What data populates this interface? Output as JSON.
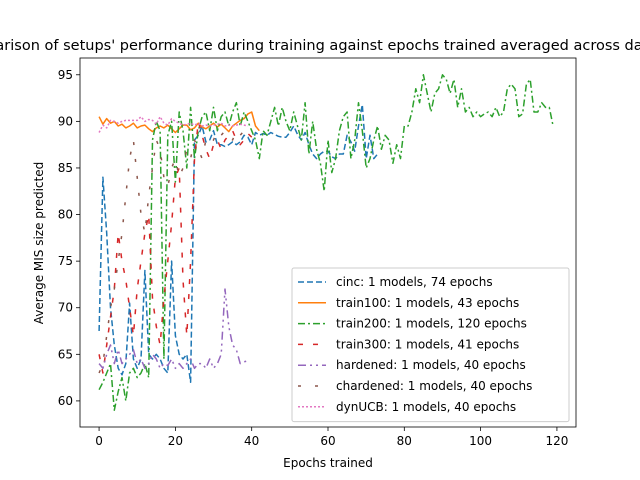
{
  "chart_data": {
    "type": "line",
    "title": "Comparison of setups' performance during training against epochs trained averaged across datasets",
    "xlabel": "Epochs trained",
    "ylabel": "Average MIS size predicted",
    "xlim": [
      -5,
      125
    ],
    "ylim": [
      57.2,
      96.8
    ],
    "xticks": [
      0,
      20,
      40,
      60,
      80,
      100,
      120
    ],
    "yticks": [
      60,
      65,
      70,
      75,
      80,
      85,
      90,
      95
    ],
    "legend_position": "lower-right",
    "series": [
      {
        "name": "cinc: 1 models, 74 epochs",
        "color": "#1f77b4",
        "dash": "6,3",
        "x": [
          0,
          1,
          2,
          3,
          4,
          5,
          6,
          7,
          8,
          9,
          10,
          11,
          12,
          13,
          14,
          15,
          16,
          17,
          18,
          19,
          20,
          21,
          22,
          23,
          24,
          25,
          26,
          27,
          28,
          29,
          30,
          31,
          32,
          33,
          34,
          35,
          36,
          37,
          38,
          39,
          40,
          41,
          42,
          43,
          44,
          45,
          46,
          47,
          48,
          49,
          50,
          51,
          52,
          53,
          54,
          55,
          56,
          57,
          58,
          59,
          60,
          61,
          62,
          63,
          64,
          65,
          66,
          67,
          68,
          69,
          70,
          71,
          72,
          73
        ],
        "values": [
          67.5,
          84,
          78,
          70,
          66,
          63.5,
          62.8,
          64,
          70.5,
          64.5,
          63.5,
          64.5,
          74,
          65,
          64.5,
          65,
          64.5,
          63.5,
          63,
          75,
          67,
          65,
          64.5,
          65,
          62,
          88,
          88.5,
          89.5,
          87.8,
          88,
          89,
          87.5,
          87.5,
          87.3,
          87.5,
          87.8,
          87.5,
          87.8,
          88.5,
          88.3,
          87.5,
          88.8,
          88.5,
          88.7,
          88.5,
          88.8,
          88.6,
          88.4,
          88.3,
          88.3,
          88.8,
          89.5,
          88.6,
          88.0,
          88.8,
          87.5,
          86.5,
          86,
          86.5,
          86.8,
          86.8,
          86.2,
          86,
          86.5,
          86.5,
          88.5,
          87.8,
          86.8,
          89.5,
          91.8,
          86,
          88.5,
          86,
          86.5
        ]
      },
      {
        "name": "train100: 1 models, 43 epochs",
        "color": "#ff7f0e",
        "dash": "",
        "x": [
          0,
          1,
          2,
          3,
          4,
          5,
          6,
          7,
          8,
          9,
          10,
          11,
          12,
          13,
          14,
          15,
          16,
          17,
          18,
          19,
          20,
          21,
          22,
          23,
          24,
          25,
          26,
          27,
          28,
          29,
          30,
          31,
          32,
          33,
          34,
          35,
          36,
          37,
          38,
          39,
          40,
          41,
          42
        ],
        "values": [
          90.5,
          89.7,
          90.3,
          89.8,
          90,
          89.5,
          89.7,
          89.3,
          89.5,
          89.8,
          89.3,
          89.5,
          89.6,
          89.2,
          88.9,
          89.3,
          89.5,
          89.3,
          89.6,
          89.2,
          88.8,
          89.2,
          89.6,
          89.6,
          89.1,
          89.3,
          89.8,
          89.4,
          89.2,
          89.5,
          89.8,
          89.4,
          89.7,
          89.3,
          88.9,
          89.5,
          89.8,
          90.1,
          90.3,
          90.8,
          91,
          89.5,
          89
        ]
      },
      {
        "name": "train200: 1 models, 120 epochs",
        "color": "#2ca02c",
        "dash": "7,3,2,3",
        "x": [
          0,
          1,
          2,
          3,
          4,
          5,
          6,
          7,
          8,
          9,
          10,
          11,
          12,
          13,
          14,
          15,
          16,
          17,
          18,
          19,
          20,
          21,
          22,
          23,
          24,
          25,
          26,
          27,
          28,
          29,
          30,
          31,
          32,
          33,
          34,
          35,
          36,
          37,
          38,
          39,
          40,
          41,
          42,
          43,
          44,
          45,
          46,
          47,
          48,
          49,
          50,
          51,
          52,
          53,
          54,
          55,
          56,
          57,
          58,
          59,
          60,
          61,
          62,
          63,
          64,
          65,
          66,
          67,
          68,
          69,
          70,
          71,
          72,
          73,
          74,
          75,
          76,
          77,
          78,
          79,
          80,
          81,
          82,
          83,
          84,
          85,
          86,
          87,
          88,
          89,
          90,
          91,
          92,
          93,
          94,
          95,
          96,
          97,
          98,
          99,
          100,
          101,
          102,
          103,
          104,
          105,
          106,
          107,
          108,
          109,
          110,
          111,
          112,
          113,
          114,
          115,
          116,
          117,
          118,
          119
        ],
        "values": [
          61.2,
          62,
          63,
          64,
          59,
          61,
          62.5,
          60,
          63,
          63.5,
          62.5,
          63,
          64,
          62.5,
          88,
          90,
          89,
          64.5,
          88.5,
          90,
          83.5,
          91,
          89,
          85,
          91.5,
          86,
          89,
          90.5,
          91,
          89,
          91.5,
          89,
          90.5,
          91,
          89.5,
          91,
          92,
          89.5,
          91,
          90,
          89,
          88,
          86,
          89,
          88.5,
          90,
          91.5,
          89.5,
          91.5,
          90,
          89,
          91,
          89.5,
          88,
          92,
          86.5,
          90,
          87,
          85.5,
          82.5,
          88,
          84.5,
          86,
          89,
          90.5,
          91,
          86,
          88,
          92,
          89,
          85,
          86,
          88,
          89.5,
          87,
          88.5,
          88,
          85.5,
          87.5,
          86,
          89.5,
          89.5,
          91,
          93.5,
          92,
          95,
          93,
          91,
          93,
          93.5,
          95,
          94.5,
          93,
          94.5,
          91.5,
          93.5,
          91,
          91.5,
          90.5,
          91,
          90.5,
          90.8,
          91,
          90.5,
          91.5,
          90.5,
          91,
          93.5,
          94,
          93.5,
          90.5,
          90.8,
          94,
          94.5,
          91,
          91,
          92,
          91.5,
          91.5,
          89.5
        ]
      },
      {
        "name": "train300: 1 models, 41 epochs",
        "color": "#d62728",
        "dash": "5,10",
        "x": [
          0,
          1,
          2,
          3,
          4,
          5,
          6,
          7,
          8,
          9,
          10,
          11,
          12,
          13,
          14,
          15,
          16,
          17,
          18,
          19,
          20,
          21,
          22,
          23,
          24,
          25,
          26,
          27,
          28,
          29,
          30,
          31,
          32,
          33,
          34,
          35,
          36,
          37,
          38,
          39,
          40
        ],
        "values": [
          65,
          63,
          66,
          69,
          72,
          78,
          75,
          73,
          70,
          67,
          72,
          75,
          78,
          80,
          71,
          68,
          66,
          71,
          75,
          79,
          84,
          85,
          73,
          67,
          75,
          86,
          90,
          88.5,
          87,
          86,
          87.5,
          88,
          87,
          88,
          88.5,
          89,
          88,
          87.5,
          88,
          88.7,
          88.3
        ]
      },
      {
        "name": "hardened: 1 models, 40 epochs",
        "color": "#9467bd",
        "dash": "8,4,2,4,2,4",
        "x": [
          0,
          1,
          2,
          3,
          4,
          5,
          6,
          7,
          8,
          9,
          10,
          11,
          12,
          13,
          14,
          15,
          16,
          17,
          18,
          19,
          20,
          21,
          22,
          23,
          24,
          25,
          26,
          27,
          28,
          29,
          30,
          31,
          32,
          33,
          34,
          35,
          36,
          37,
          38,
          39
        ],
        "values": [
          64,
          63.5,
          65,
          66,
          64,
          65.5,
          64,
          64.5,
          65,
          65.5,
          64,
          64.5,
          63.5,
          64,
          65,
          64.5,
          63.5,
          64,
          63.8,
          64.5,
          63.5,
          64,
          63.5,
          64,
          64.5,
          63.5,
          64,
          64,
          63.5,
          64.5,
          63.5,
          64,
          65,
          72,
          68,
          66,
          65.5,
          64,
          64.2,
          64.3
        ]
      },
      {
        "name": "chardened: 1 models, 40 epochs",
        "color": "#8c564b",
        "dash": "3,14",
        "x": [
          0,
          1,
          2,
          3,
          4,
          5,
          6,
          7,
          8,
          9,
          10,
          11,
          12,
          13,
          14,
          15,
          16,
          17,
          18,
          19,
          20,
          21,
          22,
          23,
          24,
          25,
          26,
          27,
          28,
          29,
          30,
          31,
          32,
          33,
          34,
          35,
          36,
          37,
          38,
          39
        ],
        "values": [
          63,
          64,
          67,
          70,
          72,
          75,
          78,
          82,
          86,
          88,
          84,
          80,
          78,
          82,
          85,
          88,
          87,
          84,
          83,
          85,
          86,
          84,
          85,
          87,
          86,
          88,
          87,
          86,
          88,
          87.5,
          88,
          89,
          88.5,
          89,
          88.5,
          88,
          89,
          88.5,
          89,
          89
        ]
      },
      {
        "name": "dynUCB: 1 models, 40 epochs",
        "color": "#e377c2",
        "dash": "2,2",
        "x": [
          0,
          1,
          2,
          3,
          4,
          5,
          6,
          7,
          8,
          9,
          10,
          11,
          12,
          13,
          14,
          15,
          16,
          17,
          18,
          19,
          20,
          21,
          22,
          23,
          24,
          25,
          26,
          27,
          28,
          29,
          30,
          31,
          32,
          33,
          34,
          35,
          36,
          37,
          38,
          39
        ],
        "values": [
          88.8,
          89.6,
          89.3,
          90.1,
          90,
          89.8,
          90,
          90.1,
          90.1,
          90.1,
          90.1,
          90.5,
          90,
          90.2,
          90.1,
          89.7,
          90.5,
          89.8,
          89.6,
          90.3,
          90,
          89.8,
          89.6,
          89.7,
          89.8,
          89.6,
          89.8,
          89.5,
          89.6,
          89.5,
          89.6,
          89.7,
          89.8,
          89.5,
          89.6,
          89.5,
          89.6,
          89.7,
          89.6,
          89.5
        ]
      }
    ]
  }
}
